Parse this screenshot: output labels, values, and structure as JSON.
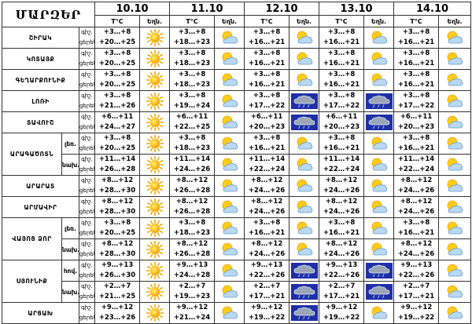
{
  "title": "ՄԱՐԶԵՐ",
  "dates": [
    "10.10",
    "11.10",
    "12.10",
    "13.10",
    "14.10"
  ],
  "col_temp": "T°C",
  "col_icon": "Եղն.",
  "lbl_day": "ցերեկ.",
  "lbl_night": "գիշ.",
  "regions": [
    {
      "name": "ՇԻՐԱԿ",
      "rows": [
        {
          "sub": "",
          "night": [
            "+3…+8",
            "+3…+8",
            "+3…+8",
            "+3…+8",
            "+3…+8"
          ],
          "day": [
            "+20…+25",
            "+18…+23",
            "+16…+21",
            "+16…+21",
            "+16…+21"
          ],
          "icons": [
            "sun",
            "partly",
            "partly",
            "partly",
            "partly"
          ]
        }
      ]
    },
    {
      "name": "ԿՈՏԱՅՔ",
      "rows": [
        {
          "sub": "",
          "night": [
            "+3…+8",
            "+3…+8",
            "+3…+8",
            "+3…+8",
            "+3…+8"
          ],
          "day": [
            "+20…+25",
            "+18…+23",
            "+16…+21",
            "+16…+21",
            "+16…+21"
          ],
          "icons": [
            "sun",
            "partly",
            "partly",
            "partly",
            "partly"
          ]
        }
      ]
    },
    {
      "name": "ԳԵՂԱՐՔՈՒՆԻՔ",
      "rows": [
        {
          "sub": "",
          "night": [
            "+3…+8",
            "+3…+8",
            "+3…+8",
            "+3…+8",
            "+3…+8"
          ],
          "day": [
            "+20…+25",
            "+18…+23",
            "+16…+21",
            "+16…+21",
            "+16…+21"
          ],
          "icons": [
            "sun",
            "partly",
            "partly",
            "partly",
            "partly"
          ]
        }
      ]
    },
    {
      "name": "ԼՈՌԻ",
      "rows": [
        {
          "sub": "",
          "night": [
            "+3…+8",
            "+3…+8",
            "+3…+8",
            "+3…+8",
            "+3…+8"
          ],
          "day": [
            "+21…+26",
            "+19…+24",
            "+17…+22",
            "+17…+22",
            "+17…+22"
          ],
          "icons": [
            "sun",
            "partly",
            "storm",
            "storm",
            "partly"
          ]
        }
      ]
    },
    {
      "name": "ՏԱՎՈՒՇ",
      "rows": [
        {
          "sub": "",
          "night": [
            "+6…+11",
            "+6…+11",
            "+6…+11",
            "+6…+11",
            "+6…+11"
          ],
          "day": [
            "+24…+27",
            "+22…+25",
            "+20…+23",
            "+20…+23",
            "+20…+23"
          ],
          "icons": [
            "sun",
            "partly",
            "storm",
            "storm",
            "partly"
          ]
        }
      ]
    },
    {
      "name": "ԱՐԱԳԱԾՈՏՆ",
      "rows": [
        {
          "sub": "լեռ.",
          "night": [
            "+3…+8",
            "+3…+8",
            "+3…+8",
            "+3…+8",
            "+3…+8"
          ],
          "day": [
            "+20…+25",
            "+18…+23",
            "+16…+21",
            "+16…+21",
            "+16…+21"
          ],
          "icons": [
            "sun",
            "partly",
            "partly",
            "partly",
            "partly"
          ]
        },
        {
          "sub": "նախ.",
          "night": [
            "+11…+14",
            "+11…+14",
            "+11…+14",
            "+11…+14",
            "+11…+14"
          ],
          "day": [
            "+26…+28",
            "+24…+26",
            "+22…+24",
            "+22…+24",
            "+22…+24"
          ],
          "icons": [
            "sun",
            "partly",
            "partly",
            "partly",
            "partly"
          ]
        }
      ]
    },
    {
      "name": "ԱՐԱՐԱՏ",
      "rows": [
        {
          "sub": "",
          "night": [
            "+8…+12",
            "+8…+12",
            "+8…+12",
            "+8…+12",
            "+8…+12"
          ],
          "day": [
            "+28…+30",
            "+26…+28",
            "+24…+26",
            "+24…+26",
            "+24…+26"
          ],
          "icons": [
            "sun",
            "partly",
            "partly",
            "partly",
            "partly"
          ]
        }
      ]
    },
    {
      "name": "ԱՐՄԱՎԻՐ",
      "rows": [
        {
          "sub": "",
          "night": [
            "+8…+12",
            "+8…+12",
            "+8…+12",
            "+8…+12",
            "+8…+12"
          ],
          "day": [
            "+28…+30",
            "+26…+28",
            "+24…+26",
            "+24…+26",
            "+24…+26"
          ],
          "icons": [
            "sun",
            "partly",
            "partly",
            "partly",
            "partly"
          ]
        }
      ]
    },
    {
      "name": "ՎԱՅՈՑ ՁՈՐ",
      "rows": [
        {
          "sub": "լեռ.",
          "night": [
            "+3…+8",
            "+3…+8",
            "+3…+8",
            "+3…+8",
            "+3…+8"
          ],
          "day": [
            "+20…+25",
            "+18…+23",
            "+16…+21",
            "+16…+21",
            "+16…+21"
          ],
          "icons": [
            "sun",
            "partly",
            "partly",
            "partly",
            "partly"
          ]
        },
        {
          "sub": "նախ.",
          "night": [
            "+8…+12",
            "+8…+12",
            "+8…+12",
            "+8…+12",
            "+8…+12"
          ],
          "day": [
            "+28…+30",
            "+26…+28",
            "+24…+26",
            "+24…+26",
            "+24…+26"
          ],
          "icons": [
            "sun",
            "partly",
            "partly",
            "partly",
            "partly"
          ]
        }
      ]
    },
    {
      "name": "ՍՅՈՒՆԻՔ",
      "rows": [
        {
          "sub": "հով.",
          "night": [
            "+9…+13",
            "+9…+13",
            "+9…+13",
            "+9…+13",
            "+9…+13"
          ],
          "day": [
            "+26…+30",
            "+24…+28",
            "+22…+26",
            "+22…+26",
            "+22…+26"
          ],
          "icons": [
            "sun",
            "partly",
            "storm",
            "storm",
            "partly"
          ]
        },
        {
          "sub": "նախ.",
          "night": [
            "+2…+7",
            "+2…+7",
            "+2…+7",
            "+2…+7",
            "+2…+7"
          ],
          "day": [
            "+21…+25",
            "+19…+23",
            "+17…+21",
            "+17…+21",
            "+17…+21"
          ],
          "icons": [
            "sun",
            "partly",
            "storm",
            "storm",
            "partly"
          ]
        }
      ]
    },
    {
      "name": "ԱՐՑԱԽ",
      "rows": [
        {
          "sub": "",
          "night": [
            "+9…+12",
            "+9…+12",
            "+9…+12",
            "+9…+12",
            "+9…+12"
          ],
          "day": [
            "+23…+26",
            "+21…+24",
            "+19…+22",
            "+19…+22",
            "+19…+22"
          ],
          "icons": [
            "sun",
            "partly",
            "storm",
            "partly",
            "partly"
          ]
        }
      ]
    }
  ]
}
